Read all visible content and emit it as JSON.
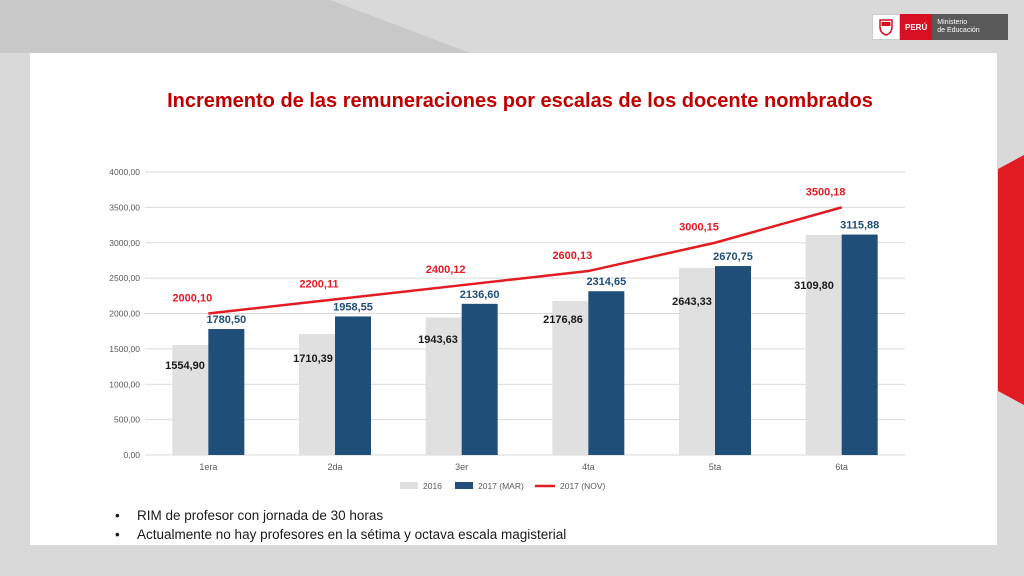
{
  "header": {
    "logo_country": "PERÚ",
    "logo_ministry_line1": "Ministerio",
    "logo_ministry_line2": "de Educación"
  },
  "title": "Incremento de las remuneraciones por escalas de los docente nombrados",
  "bullets": [
    "RIM de profesor con jornada de 30 horas",
    "Actualmente no hay profesores en la sétima y octava escala magisterial"
  ],
  "colors": {
    "title": "#c00000",
    "series_2016": "#e0e0e0",
    "series_2017_mar": "#1f4e79",
    "series_2017_nov": "#e31b23",
    "accent_red": "#e31b23"
  },
  "chart_data": {
    "type": "bar",
    "categories": [
      "1era",
      "2da",
      "3er",
      "4ta",
      "5ta",
      "6ta"
    ],
    "ylim": [
      0,
      4000
    ],
    "yticks": [
      "0,00",
      "500,00",
      "1000,00",
      "1500,00",
      "2000,00",
      "2500,00",
      "3000,00",
      "3500,00",
      "4000,00"
    ],
    "grid": true,
    "legend_position": "bottom",
    "series": [
      {
        "name": "2016",
        "type": "bar",
        "values": [
          1554.9,
          1710.39,
          1943.63,
          2176.86,
          2643.33,
          3109.8
        ],
        "labels": [
          "1554,90",
          "1710,39",
          "1943,63",
          "2176,86",
          "2643,33",
          "3109,80"
        ]
      },
      {
        "name": "2017 (MAR)",
        "type": "bar",
        "values": [
          1780.5,
          1958.55,
          2136.6,
          2314.65,
          2670.75,
          3115.88
        ],
        "labels": [
          "1780,50",
          "1958,55",
          "2136,60",
          "2314,65",
          "2670,75",
          "3115,88"
        ]
      },
      {
        "name": "2017 (NOV)",
        "type": "line",
        "values": [
          2000.1,
          2200.11,
          2400.12,
          2600.13,
          3000.15,
          3500.18
        ],
        "labels": [
          "2000,10",
          "2200,11",
          "2400,12",
          "2600,13",
          "3000,15",
          "3500,18"
        ]
      }
    ]
  }
}
